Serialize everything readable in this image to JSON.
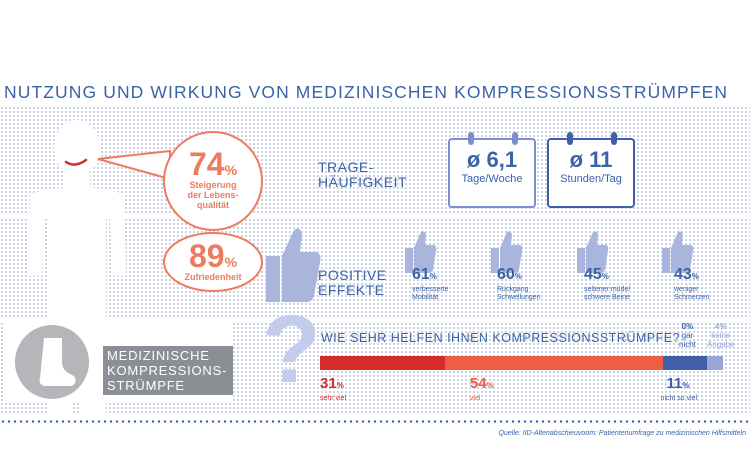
{
  "title": "NUTZUNG UND WIRKUNG VON MEDIZINISCHEN KOMPRESSIONSSTRÜMPFEN",
  "quality": {
    "value": "74",
    "unit": "%",
    "line1": "Steigerung",
    "line2": "der Lebens-",
    "line3": "qualität"
  },
  "satisfaction": {
    "value": "89",
    "unit": "%",
    "label": "Zufriedenheit"
  },
  "wearing": {
    "label_line1": "TRAGE-",
    "label_line2": "HÄUFIGKEIT",
    "days": {
      "value": "ø 6,1",
      "unit": "Tage/Woche"
    },
    "hours": {
      "value": "ø 11",
      "unit": "Stunden/Tag"
    }
  },
  "effects": {
    "label_line1": "POSITIVE",
    "label_line2": "EFFEKTE",
    "items": [
      {
        "value": "61",
        "unit": "%",
        "line1": "verbesserte",
        "line2": "Mobilität"
      },
      {
        "value": "60",
        "unit": "%",
        "line1": "Rückgang",
        "line2": "Schwellungen"
      },
      {
        "value": "45",
        "unit": "%",
        "line1": "seltener müde/",
        "line2": "schwere Beine"
      },
      {
        "value": "43",
        "unit": "%",
        "line1": "weniger",
        "line2": "Schmerzen"
      }
    ]
  },
  "help": {
    "question": "WIE SEHR HELFEN IHNEN KOMPRESSIONSSTRÜMPFE?",
    "segments": [
      {
        "value": "31",
        "unit": "%",
        "label": "sehr viel",
        "color": "#d42b2b"
      },
      {
        "value": "54",
        "unit": "%",
        "label": "viel",
        "color": "#ec5f45"
      },
      {
        "value": "11",
        "unit": "%",
        "label": "nicht so viel",
        "color": "#3f5fa9"
      },
      {
        "value": "0%",
        "line1": "gar",
        "line2": "nicht",
        "color": "#3a63a8"
      },
      {
        "value": "4%",
        "line1": "keine",
        "line2": "Angabe",
        "color": "#9aa6d3"
      }
    ]
  },
  "product": {
    "line1": "MEDIZINISCHE",
    "line2": "KOMPRESSIONS-",
    "line3": "STRÜMPFE"
  },
  "source": "Quelle: IID-Altenabschieuvoom: Patientenumfrage zu medizinischen Hilfsmitteln",
  "colors": {
    "blue": "#3a63a8",
    "coral": "#ec7b5f",
    "red": "#d42b2b"
  }
}
